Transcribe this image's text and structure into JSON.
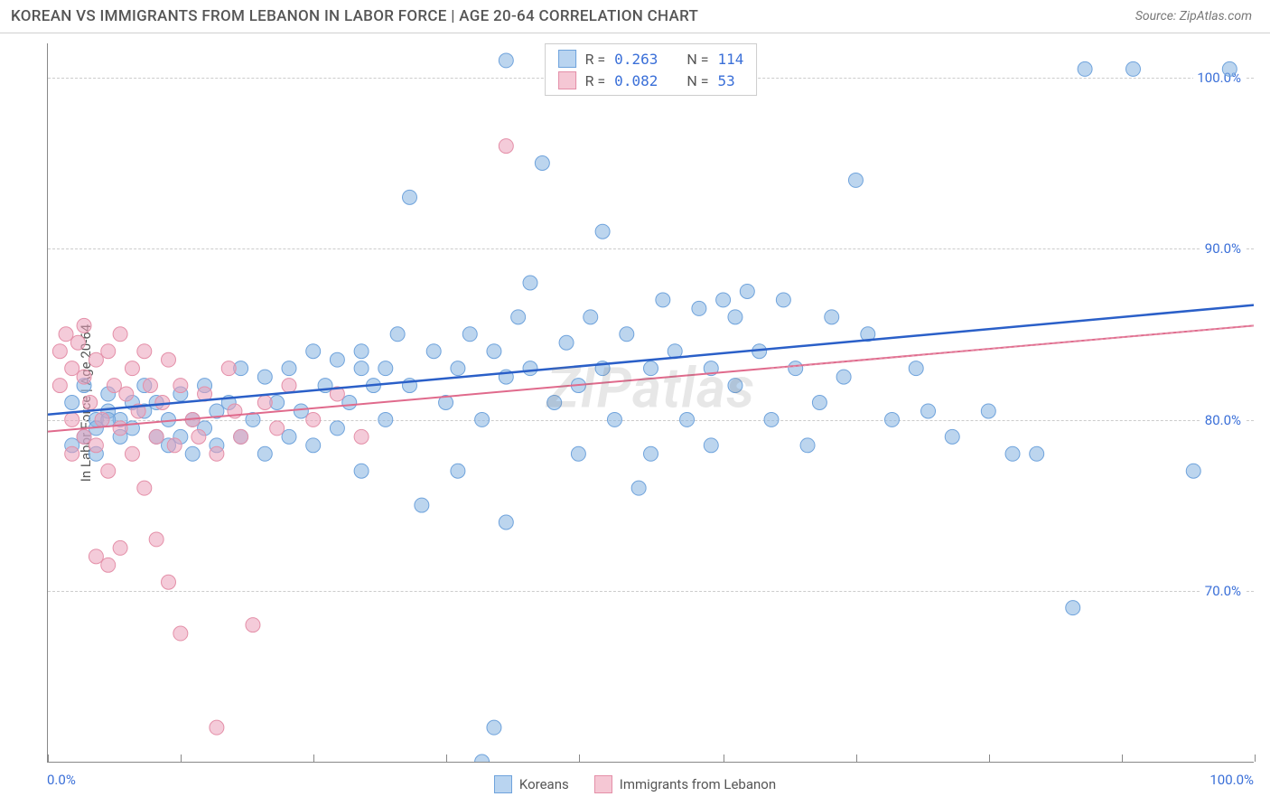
{
  "header": {
    "title": "KOREAN VS IMMIGRANTS FROM LEBANON IN LABOR FORCE | AGE 20-64 CORRELATION CHART",
    "source": "Source: ZipAtlas.com"
  },
  "chart": {
    "type": "scatter",
    "ylabel": "In Labor Force | Age 20-64",
    "watermark": "ZIPatlas",
    "background_color": "#ffffff",
    "grid_color": "#cccccc",
    "axis_color": "#888888",
    "tick_color": "#3a6fd8",
    "xlim": [
      0,
      100
    ],
    "ylim": [
      60,
      102
    ],
    "xticks": [
      {
        "pos": 0,
        "label": "0.0%"
      },
      {
        "pos": 100,
        "label": "100.0%"
      }
    ],
    "xtick_marks": [
      0,
      11,
      22,
      33,
      44,
      56,
      67,
      78,
      89,
      100
    ],
    "yticks": [
      {
        "pos": 70,
        "label": "70.0%"
      },
      {
        "pos": 80,
        "label": "80.0%"
      },
      {
        "pos": 90,
        "label": "90.0%"
      },
      {
        "pos": 100,
        "label": "100.0%"
      }
    ],
    "legend_top": [
      {
        "swatch_fill": "#b9d4f0",
        "swatch_border": "#6fa3dc",
        "r_label": "R =",
        "r_val": "0.263",
        "n_label": "N =",
        "n_val": "114"
      },
      {
        "swatch_fill": "#f5c7d4",
        "swatch_border": "#e48fa8",
        "r_label": "R =",
        "r_val": "0.082",
        "n_label": "N =",
        "n_val": "53"
      }
    ],
    "legend_bottom": [
      {
        "swatch_fill": "#b9d4f0",
        "swatch_border": "#6fa3dc",
        "label": "Koreans"
      },
      {
        "swatch_fill": "#f5c7d4",
        "swatch_border": "#e48fa8",
        "label": "Immigrants from Lebanon"
      }
    ],
    "series": [
      {
        "name": "koreans",
        "marker_fill": "rgba(133,178,224,0.55)",
        "marker_stroke": "#6fa3dc",
        "marker_radius": 8,
        "trend_color": "#2a5fc8",
        "trend_width": 2.5,
        "trend_dash": "",
        "trend": {
          "x1": 0,
          "y1": 80.3,
          "x2": 100,
          "y2": 86.7
        },
        "points": [
          [
            2,
            81
          ],
          [
            3,
            82
          ],
          [
            4,
            80
          ],
          [
            4,
            79.5
          ],
          [
            5,
            81.5
          ],
          [
            5,
            80.5
          ],
          [
            6,
            79
          ],
          [
            6,
            80
          ],
          [
            7,
            81
          ],
          [
            7,
            79.5
          ],
          [
            8,
            80.5
          ],
          [
            8,
            82
          ],
          [
            9,
            81
          ],
          [
            9,
            79
          ],
          [
            10,
            80
          ],
          [
            10,
            78.5
          ],
          [
            11,
            81.5
          ],
          [
            11,
            79
          ],
          [
            12,
            80
          ],
          [
            12,
            78
          ],
          [
            13,
            82
          ],
          [
            13,
            79.5
          ],
          [
            14,
            80.5
          ],
          [
            14,
            78.5
          ],
          [
            15,
            81
          ],
          [
            16,
            83
          ],
          [
            16,
            79
          ],
          [
            17,
            80
          ],
          [
            18,
            82.5
          ],
          [
            18,
            78
          ],
          [
            19,
            81
          ],
          [
            20,
            83
          ],
          [
            20,
            79
          ],
          [
            21,
            80.5
          ],
          [
            22,
            84
          ],
          [
            22,
            78.5
          ],
          [
            23,
            82
          ],
          [
            24,
            83.5
          ],
          [
            24,
            79.5
          ],
          [
            25,
            81
          ],
          [
            26,
            84
          ],
          [
            26,
            77
          ],
          [
            27,
            82
          ],
          [
            28,
            83
          ],
          [
            28,
            80
          ],
          [
            29,
            85
          ],
          [
            30,
            82
          ],
          [
            30,
            93
          ],
          [
            31,
            75
          ],
          [
            32,
            84
          ],
          [
            33,
            81
          ],
          [
            34,
            77
          ],
          [
            34,
            83
          ],
          [
            35,
            85
          ],
          [
            36,
            80
          ],
          [
            36,
            60
          ],
          [
            37,
            84
          ],
          [
            37,
            62
          ],
          [
            38,
            82.5
          ],
          [
            38,
            74
          ],
          [
            39,
            86
          ],
          [
            40,
            83
          ],
          [
            40,
            88
          ],
          [
            41,
            95
          ],
          [
            42,
            81
          ],
          [
            43,
            84.5
          ],
          [
            44,
            78
          ],
          [
            44,
            82
          ],
          [
            45,
            86
          ],
          [
            46,
            83
          ],
          [
            46,
            91
          ],
          [
            47,
            80
          ],
          [
            48,
            85
          ],
          [
            49,
            76
          ],
          [
            50,
            83
          ],
          [
            50,
            78
          ],
          [
            51,
            87
          ],
          [
            52,
            84
          ],
          [
            53,
            80
          ],
          [
            54,
            86.5
          ],
          [
            55,
            83
          ],
          [
            55,
            78.5
          ],
          [
            56,
            87
          ],
          [
            57,
            82
          ],
          [
            57,
            86
          ],
          [
            58,
            87.5
          ],
          [
            59,
            84
          ],
          [
            60,
            80
          ],
          [
            61,
            87
          ],
          [
            62,
            83
          ],
          [
            63,
            78.5
          ],
          [
            64,
            81
          ],
          [
            65,
            86
          ],
          [
            66,
            82.5
          ],
          [
            67,
            94
          ],
          [
            68,
            85
          ],
          [
            70,
            80
          ],
          [
            72,
            83
          ],
          [
            73,
            80.5
          ],
          [
            75,
            79
          ],
          [
            78,
            80.5
          ],
          [
            80,
            78
          ],
          [
            82,
            78
          ],
          [
            85,
            69
          ],
          [
            86,
            100.5
          ],
          [
            90,
            100.5
          ],
          [
            95,
            77
          ],
          [
            98,
            100.5
          ],
          [
            38,
            101
          ],
          [
            2,
            78.5
          ],
          [
            3,
            79
          ],
          [
            4,
            78
          ],
          [
            5,
            80
          ],
          [
            26,
            83
          ]
        ]
      },
      {
        "name": "lebanon",
        "marker_fill": "rgba(235,160,185,0.55)",
        "marker_stroke": "#e48fa8",
        "marker_radius": 8,
        "trend_color": "#e06a8c",
        "trend_width": 2,
        "trend_dash": "",
        "trend": {
          "x1": 0,
          "y1": 79.3,
          "x2": 100,
          "y2": 85.5
        },
        "extrapolation": {
          "color": "#e48fa8",
          "dash": "3,3",
          "x1": 60,
          "y1": 83.0,
          "x2": 100,
          "y2": 85.5
        },
        "points": [
          [
            1,
            84
          ],
          [
            1,
            82
          ],
          [
            1.5,
            85
          ],
          [
            2,
            83
          ],
          [
            2,
            80
          ],
          [
            2,
            78
          ],
          [
            2.5,
            84.5
          ],
          [
            3,
            82.5
          ],
          [
            3,
            79
          ],
          [
            3,
            85.5
          ],
          [
            3.5,
            81
          ],
          [
            4,
            83.5
          ],
          [
            4,
            78.5
          ],
          [
            4,
            72
          ],
          [
            4.5,
            80
          ],
          [
            5,
            84
          ],
          [
            5,
            77
          ],
          [
            5,
            71.5
          ],
          [
            5.5,
            82
          ],
          [
            6,
            85
          ],
          [
            6,
            79.5
          ],
          [
            6,
            72.5
          ],
          [
            6.5,
            81.5
          ],
          [
            7,
            83
          ],
          [
            7,
            78
          ],
          [
            7.5,
            80.5
          ],
          [
            8,
            84
          ],
          [
            8,
            76
          ],
          [
            8.5,
            82
          ],
          [
            9,
            79
          ],
          [
            9,
            73
          ],
          [
            9.5,
            81
          ],
          [
            10,
            83.5
          ],
          [
            10,
            70.5
          ],
          [
            10.5,
            78.5
          ],
          [
            11,
            82
          ],
          [
            11,
            67.5
          ],
          [
            12,
            80
          ],
          [
            12.5,
            79
          ],
          [
            13,
            81.5
          ],
          [
            14,
            78
          ],
          [
            14,
            62
          ],
          [
            15,
            83
          ],
          [
            15.5,
            80.5
          ],
          [
            16,
            79
          ],
          [
            17,
            68
          ],
          [
            18,
            81
          ],
          [
            19,
            79.5
          ],
          [
            20,
            82
          ],
          [
            22,
            80
          ],
          [
            24,
            81.5
          ],
          [
            26,
            79
          ],
          [
            38,
            96
          ]
        ]
      }
    ]
  }
}
